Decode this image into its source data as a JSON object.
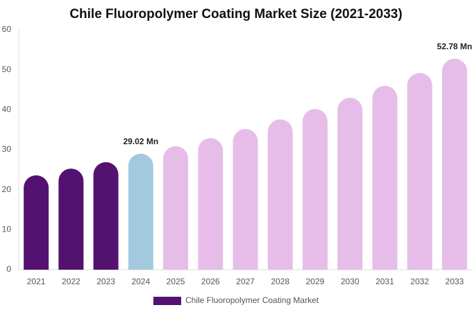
{
  "chart_data": {
    "type": "bar",
    "title": "Chile Fluoropolymer Coating Market Size (2021-2033)",
    "categories": [
      "2021",
      "2022",
      "2023",
      "2024",
      "2025",
      "2026",
      "2027",
      "2028",
      "2029",
      "2030",
      "2031",
      "2032",
      "2033"
    ],
    "series": [
      {
        "name": "Chile Fluoropolymer Coating Market",
        "color": "#541270",
        "values": [
          23.6,
          25.3,
          26.9,
          29.02,
          30.9,
          32.9,
          35.2,
          37.6,
          40.2,
          43.0,
          46.0,
          49.2,
          52.78
        ],
        "value_labels": [
          null,
          null,
          null,
          "29.02 Mn",
          null,
          null,
          null,
          null,
          null,
          null,
          null,
          null,
          "52.78 Mn"
        ],
        "colors": [
          "#541270",
          "#541270",
          "#541270",
          "#a3c9de",
          "#e6bde8",
          "#e6bde8",
          "#e6bde8",
          "#e6bde8",
          "#e6bde8",
          "#e6bde8",
          "#e6bde8",
          "#e6bde8",
          "#e6bde8"
        ]
      }
    ],
    "ylim": [
      0,
      60
    ],
    "yticks": [
      0,
      10,
      20,
      30,
      40,
      50,
      60
    ],
    "grid": false
  }
}
